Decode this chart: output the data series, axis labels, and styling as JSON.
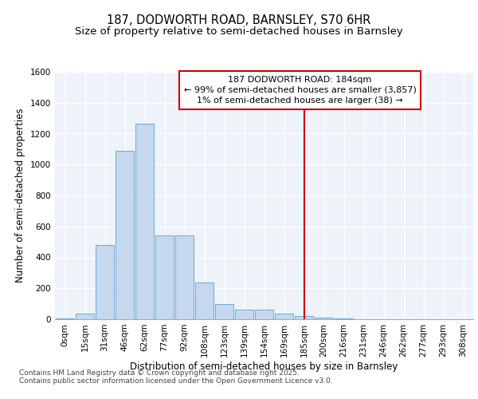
{
  "title1": "187, DODWORTH ROAD, BARNSLEY, S70 6HR",
  "title2": "Size of property relative to semi-detached houses in Barnsley",
  "xlabel": "Distribution of semi-detached houses by size in Barnsley",
  "ylabel": "Number of semi-detached properties",
  "categories": [
    "0sqm",
    "15sqm",
    "31sqm",
    "46sqm",
    "62sqm",
    "77sqm",
    "92sqm",
    "108sqm",
    "123sqm",
    "139sqm",
    "154sqm",
    "169sqm",
    "185sqm",
    "200sqm",
    "216sqm",
    "231sqm",
    "246sqm",
    "262sqm",
    "277sqm",
    "293sqm",
    "308sqm"
  ],
  "bar_values": [
    5,
    35,
    480,
    1090,
    1265,
    540,
    540,
    240,
    100,
    60,
    60,
    35,
    20,
    10,
    5,
    2,
    2,
    1,
    0,
    0,
    0
  ],
  "bar_color": "#c5d8ee",
  "bar_edge_color": "#6aaad4",
  "vline_x_index": 12,
  "vline_color": "#cc0000",
  "annotation_text": "187 DODWORTH ROAD: 184sqm\n← 99% of semi-detached houses are smaller (3,857)\n1% of semi-detached houses are larger (38) →",
  "annotation_box_color": "#ffffff",
  "annotation_box_edge": "#cc0000",
  "ylim": [
    0,
    1600
  ],
  "yticks": [
    0,
    200,
    400,
    600,
    800,
    1000,
    1200,
    1400,
    1600
  ],
  "bg_color": "#eef2f9",
  "footer_text": "Contains HM Land Registry data © Crown copyright and database right 2025.\nContains public sector information licensed under the Open Government Licence v3.0.",
  "title_fontsize": 10.5,
  "subtitle_fontsize": 9.5,
  "axis_label_fontsize": 8.5,
  "tick_fontsize": 7.5,
  "footer_fontsize": 6.5
}
